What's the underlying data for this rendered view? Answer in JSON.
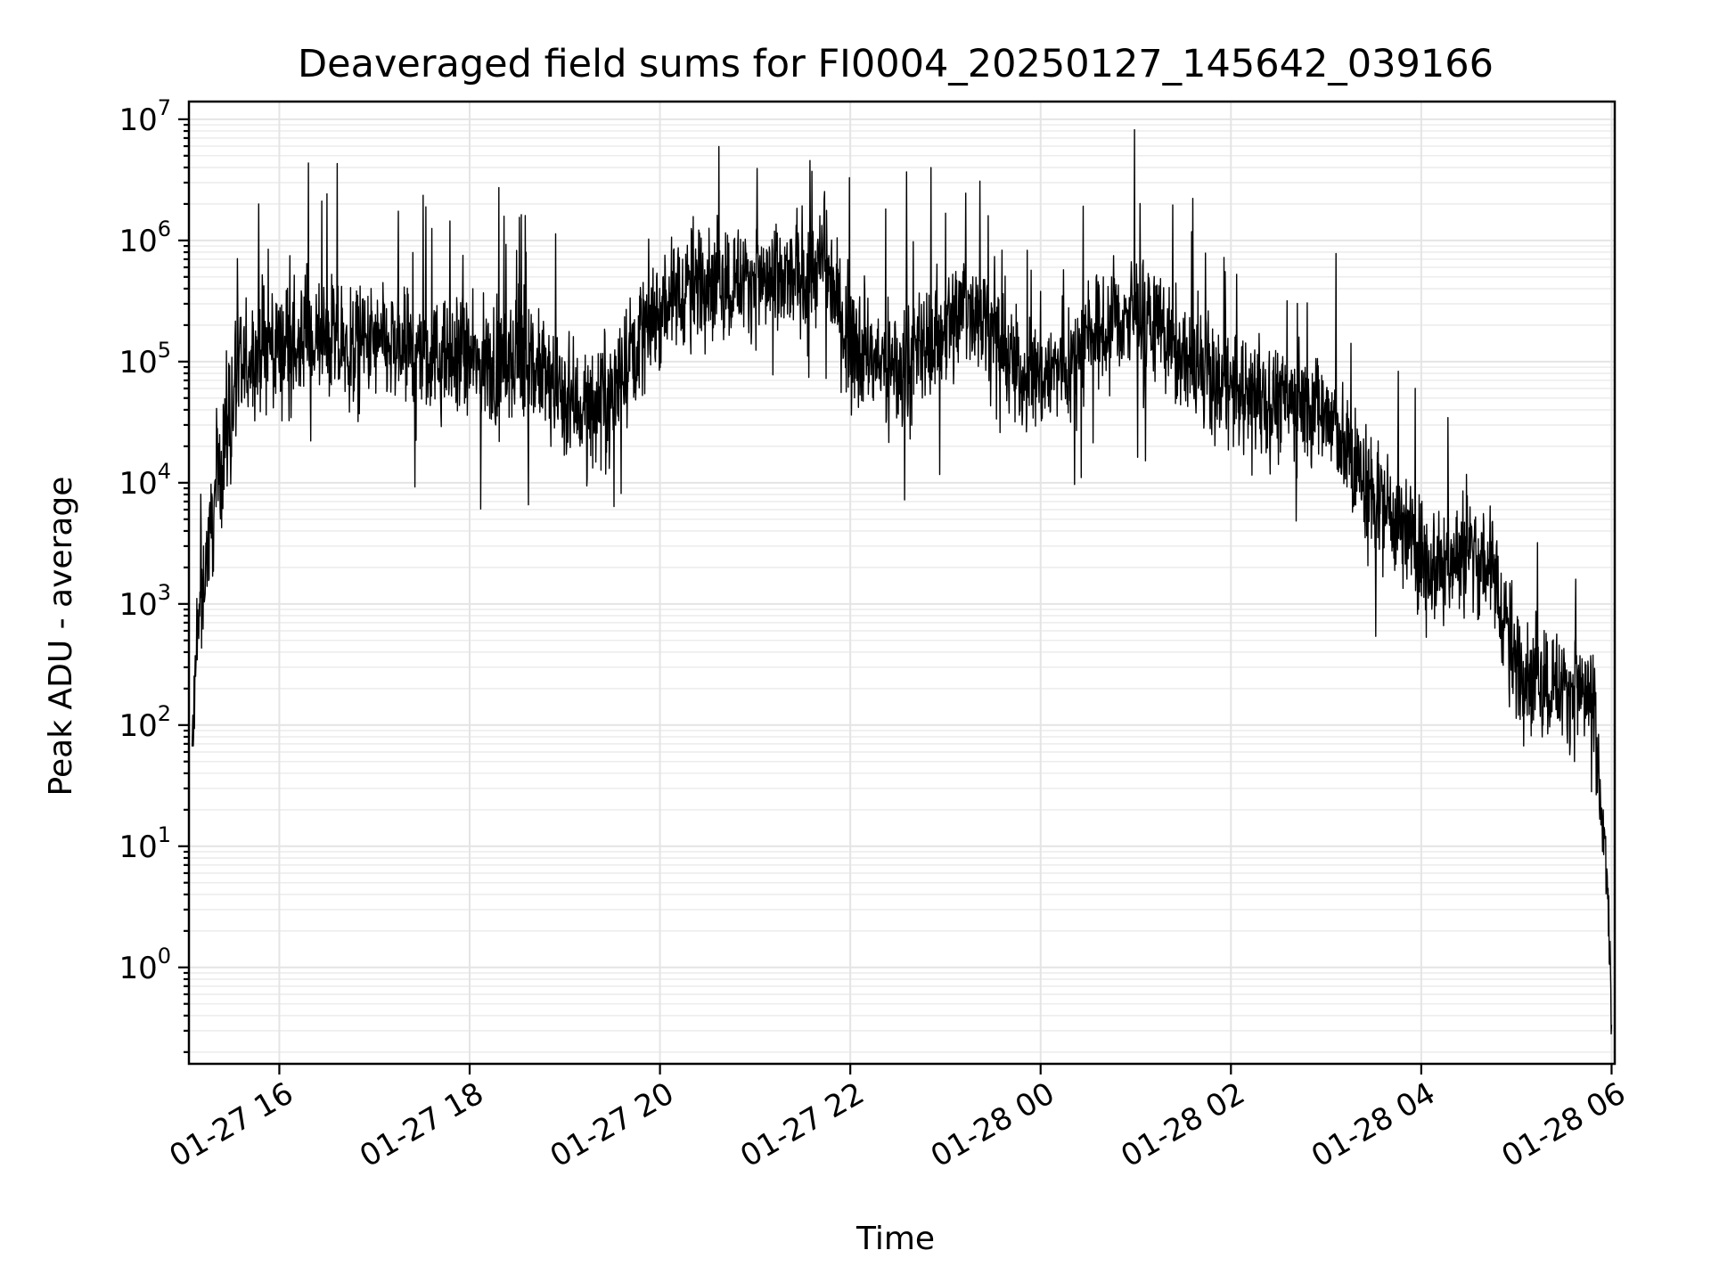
{
  "chart_data": {
    "type": "line",
    "title": "Deaveraged field sums for FI0004_20250127_145642_039166",
    "xlabel": "Time",
    "ylabel": "Peak ADU - average",
    "yscale": "log",
    "ylim": [
      0.16,
      14000000
    ],
    "xlim": [
      "2025-01-27 15:03",
      "2025-01-28 06:02"
    ],
    "x_ticks": [
      "01-27 16",
      "01-27 18",
      "01-27 20",
      "01-27 22",
      "01-28 00",
      "01-28 02",
      "01-28 04",
      "01-28 06"
    ],
    "y_ticks": [
      {
        "base": "10",
        "exp": "0"
      },
      {
        "base": "10",
        "exp": "1"
      },
      {
        "base": "10",
        "exp": "2"
      },
      {
        "base": "10",
        "exp": "3"
      },
      {
        "base": "10",
        "exp": "4"
      },
      {
        "base": "10",
        "exp": "5"
      },
      {
        "base": "10",
        "exp": "6"
      },
      {
        "base": "10",
        "exp": "7"
      }
    ],
    "grid": true,
    "line_color": "#000000",
    "series": [
      {
        "x": [
          "2025-01-27 15:05",
          "2025-01-27 15:10",
          "2025-01-27 15:15",
          "2025-01-27 15:20",
          "2025-01-27 15:25",
          "2025-01-27 15:30",
          "2025-01-27 15:40",
          "2025-01-27 15:50",
          "2025-01-27 16:00",
          "2025-01-27 16:15",
          "2025-01-27 16:30",
          "2025-01-27 16:45",
          "2025-01-27 17:00",
          "2025-01-27 17:15",
          "2025-01-27 17:30",
          "2025-01-27 17:45",
          "2025-01-27 18:00",
          "2025-01-27 18:15",
          "2025-01-27 18:30",
          "2025-01-27 18:45",
          "2025-01-27 19:00",
          "2025-01-27 19:15",
          "2025-01-27 19:30",
          "2025-01-27 19:45",
          "2025-01-27 20:00",
          "2025-01-27 20:15",
          "2025-01-27 20:30",
          "2025-01-27 20:45",
          "2025-01-27 21:00",
          "2025-01-27 21:15",
          "2025-01-27 21:30",
          "2025-01-27 21:45",
          "2025-01-27 22:00",
          "2025-01-27 22:15",
          "2025-01-27 22:30",
          "2025-01-27 22:45",
          "2025-01-27 23:00",
          "2025-01-27 23:15",
          "2025-01-27 23:30",
          "2025-01-27 23:45",
          "2025-01-28 00:00",
          "2025-01-28 00:15",
          "2025-01-28 00:30",
          "2025-01-28 00:45",
          "2025-01-28 01:00",
          "2025-01-28 01:15",
          "2025-01-28 01:30",
          "2025-01-28 01:45",
          "2025-01-28 02:00",
          "2025-01-28 02:15",
          "2025-01-28 02:30",
          "2025-01-28 02:45",
          "2025-01-28 03:00",
          "2025-01-28 03:15",
          "2025-01-28 03:30",
          "2025-01-28 03:45",
          "2025-01-28 04:00",
          "2025-01-28 04:15",
          "2025-01-28 04:30",
          "2025-01-28 04:45",
          "2025-01-28 05:00",
          "2025-01-28 05:15",
          "2025-01-28 05:30",
          "2025-01-28 05:40",
          "2025-01-28 05:48",
          "2025-01-28 05:52",
          "2025-01-28 05:56",
          "2025-01-28 05:58",
          "2025-01-28 06:00"
        ],
        "y": [
          60,
          1000,
          3000,
          8000,
          20000,
          50000,
          100000,
          130000,
          140000,
          130000,
          150000,
          120000,
          140000,
          120000,
          110000,
          100000,
          100000,
          90000,
          100000,
          80000,
          50000,
          40000,
          60000,
          150000,
          300000,
          400000,
          500000,
          450000,
          500000,
          400000,
          550000,
          600000,
          150000,
          100000,
          80000,
          120000,
          200000,
          300000,
          200000,
          80000,
          80000,
          90000,
          150000,
          200000,
          250000,
          200000,
          100000,
          70000,
          60000,
          50000,
          50000,
          45000,
          40000,
          15000,
          8000,
          5000,
          2500,
          2000,
          3000,
          2000,
          300,
          250,
          200,
          200,
          150,
          30,
          8,
          3,
          0.3
        ]
      }
    ]
  }
}
